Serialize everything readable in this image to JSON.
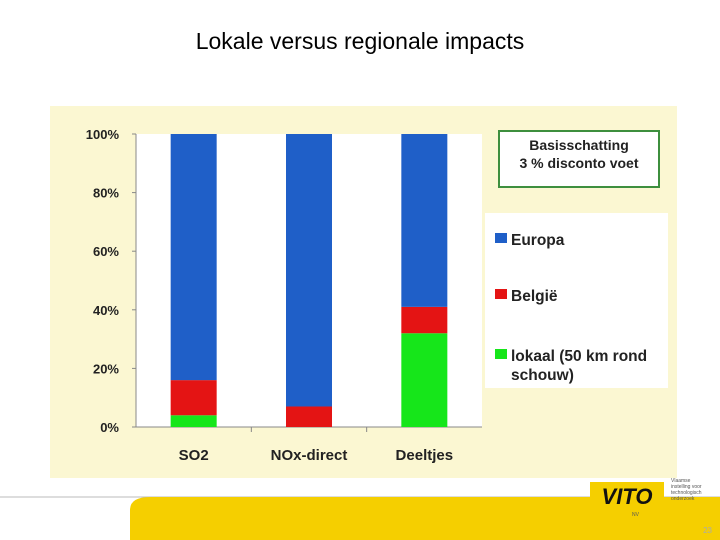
{
  "slide": {
    "title": "Lokale versus regionale impacts",
    "page_number": "23"
  },
  "infobox": {
    "line1": "Basisschatting",
    "line2": "3 % disconto voet"
  },
  "logo": {
    "alt": "VITO",
    "tagline": [
      "Vlaamse",
      "instelling voor",
      "technologisch",
      "onderzoek"
    ]
  },
  "colors": {
    "europa": "#1f5fc8",
    "belgie": "#e41414",
    "lokaal": "#16e61a",
    "panel": "#fbf7d2",
    "accent": "#f5cf00"
  },
  "chart_data": {
    "type": "bar",
    "stacked": true,
    "percent": true,
    "categories": [
      "SO2",
      "NOx-direct",
      "Deeltjes"
    ],
    "series": [
      {
        "name": "lokaal (50 km rond schouw)",
        "color": "#16e61a",
        "values": [
          4,
          0,
          32
        ]
      },
      {
        "name": "België",
        "color": "#e41414",
        "values": [
          12,
          7,
          9
        ]
      },
      {
        "name": "Europa",
        "color": "#1f5fc8",
        "values": [
          84,
          93,
          59
        ]
      }
    ],
    "legend_order": [
      "Europa",
      "België",
      "lokaal (50 km rond schouw)"
    ],
    "yticks": [
      "0%",
      "20%",
      "40%",
      "60%",
      "80%",
      "100%"
    ],
    "ylim": [
      0,
      100
    ],
    "legend_position": "right"
  }
}
